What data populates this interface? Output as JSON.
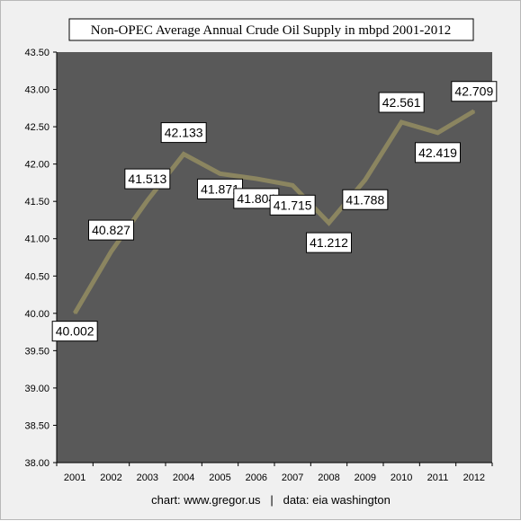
{
  "chart_data": {
    "type": "line",
    "title": "Non-OPEC Average Annual Crude Oil Supply in mbpd 2001-2012",
    "categories": [
      "2001",
      "2002",
      "2003",
      "2004",
      "2005",
      "2006",
      "2007",
      "2008",
      "2009",
      "2010",
      "2011",
      "2012"
    ],
    "series": [
      {
        "values": [
          40.002,
          40.827,
          41.513,
          42.133,
          41.871,
          41.804,
          41.715,
          41.212,
          41.788,
          42.561,
          42.419,
          42.709
        ],
        "data_labels": [
          "40.002",
          "40.827",
          "41.513",
          "42.133",
          "41.871",
          "41.804",
          "41.715",
          "41.212",
          "41.788",
          "42.561",
          "42.419",
          "42.709"
        ],
        "color": "#8b8560"
      }
    ],
    "ylim": [
      38.0,
      43.5
    ],
    "y_ticks": [
      "43.50",
      "43.00",
      "42.50",
      "42.00",
      "41.50",
      "41.00",
      "40.50",
      "40.00",
      "39.50",
      "39.00",
      "38.50",
      "38.00"
    ],
    "y_tick_values": [
      43.5,
      43.0,
      42.5,
      42.0,
      41.5,
      41.0,
      40.5,
      40.0,
      39.5,
      39.0,
      38.5,
      38.0
    ],
    "grid": false,
    "plot_background": "#595959",
    "footer": "chart: www.gregor.us   |   data: eia washington"
  }
}
